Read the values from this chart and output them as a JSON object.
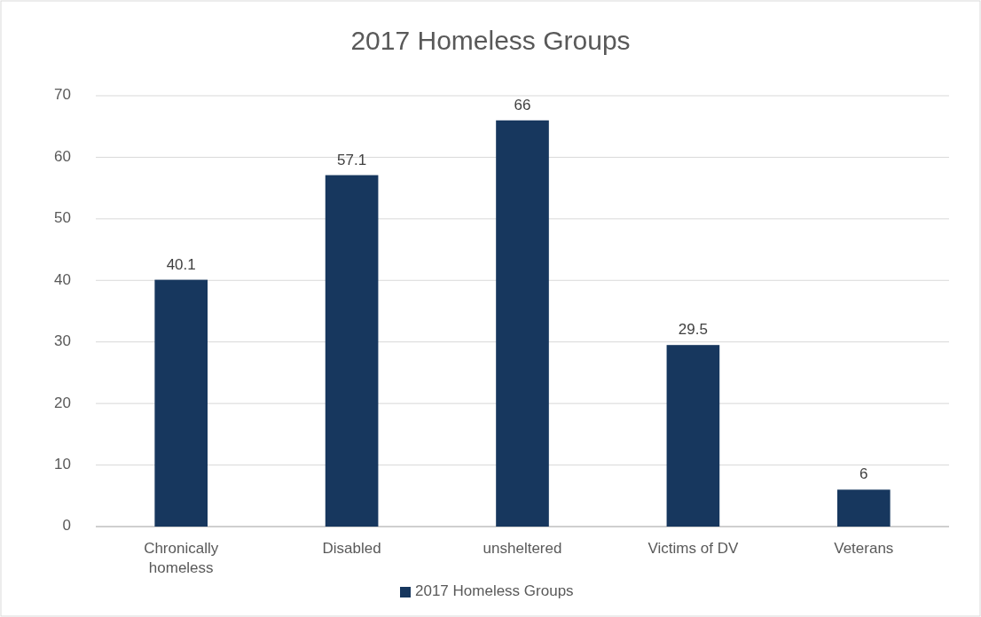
{
  "chart_data": {
    "type": "bar",
    "title": "2017 Homeless Groups",
    "categories": [
      "Chronically homeless",
      "Disabled",
      "unsheltered",
      "Victims of DV",
      "Veterans"
    ],
    "series": [
      {
        "name": "2017 Homeless Groups",
        "color": "#17375e",
        "values": [
          40.1,
          57.1,
          66,
          29.5,
          6
        ]
      }
    ],
    "ylim": [
      0,
      70
    ],
    "yticks": [
      0,
      10,
      20,
      30,
      40,
      50,
      60,
      70
    ],
    "grid": "y",
    "legend": "bottom",
    "data_labels": true
  }
}
